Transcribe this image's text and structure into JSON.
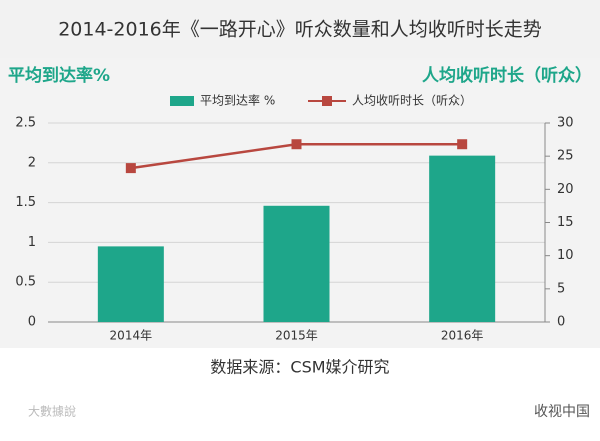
{
  "chart_data": {
    "type": "bar-line",
    "title": "2014-2016年《一路开心》听众数量和人均收听时长走势",
    "ylabel": "平均到达率%",
    "y2label": "人均收听时长（听众）",
    "categories": [
      "2014年",
      "2015年",
      "2016年"
    ],
    "series": [
      {
        "name": "平均到达率 %",
        "type": "bar",
        "color": "#1ea68a",
        "values": [
          0.95,
          1.46,
          2.09
        ]
      },
      {
        "name": "人均收听时长（听众）",
        "type": "line",
        "axis": "y2",
        "color": "#b8473f",
        "values": [
          23.2,
          26.8,
          26.8
        ]
      }
    ],
    "ylim": [
      0,
      2.5
    ],
    "yticks": [
      0,
      0.5,
      1,
      1.5,
      2,
      2.5
    ],
    "y2lim": [
      0,
      30
    ],
    "y2ticks": [
      0,
      5,
      10,
      15,
      20,
      25,
      30
    ],
    "source": "数据来源：CSM媒介研究",
    "watermarks": [
      "大數據說",
      "收视中国"
    ]
  }
}
